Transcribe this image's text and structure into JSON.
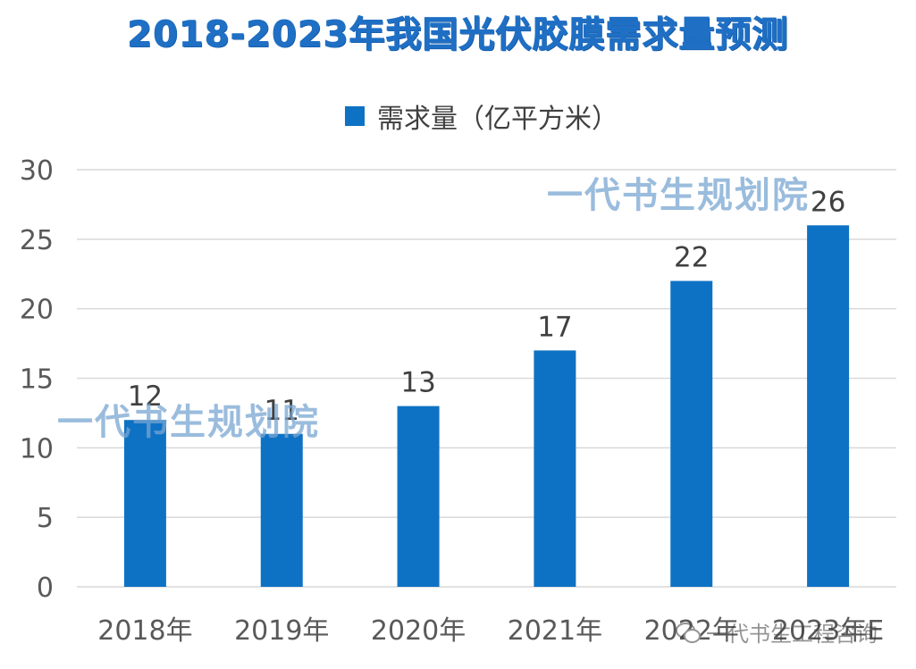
{
  "page": {
    "watermark_text": "一代书生规划院",
    "corner_brand": "一代书生工程咨询"
  },
  "colors": {
    "bar": "#0e72c4",
    "title": "#1f6fc4",
    "grid": "#d9d9d9",
    "axis_text": "#595959",
    "label_text": "#404040"
  },
  "chart_data": {
    "type": "bar",
    "title": "2018-2023年我国光伏胶膜需求量预测",
    "legend": [
      "需求量（亿平方米）"
    ],
    "legend_position": "top-center",
    "categories": [
      "2018年",
      "2019年",
      "2020年",
      "2021年",
      "2022年",
      "2023年E"
    ],
    "series": [
      {
        "name": "需求量（亿平方米）",
        "values": [
          12,
          11,
          13,
          17,
          22,
          26
        ]
      }
    ],
    "data_labels": [
      "12",
      "11",
      "13",
      "17",
      "22",
      "26"
    ],
    "yticks": [
      0,
      5,
      10,
      15,
      20,
      25,
      30
    ],
    "ylim": [
      0,
      30
    ],
    "grid": true,
    "xlabel": "",
    "ylabel": ""
  }
}
